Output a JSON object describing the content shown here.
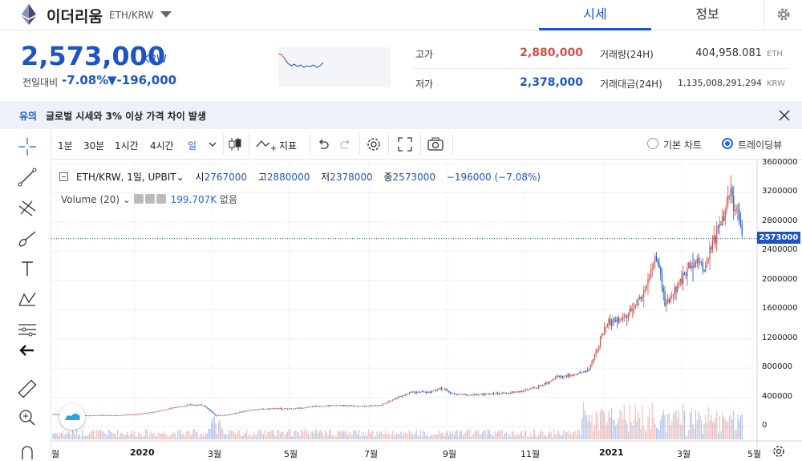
{
  "header": {
    "coin_name": "이더리움",
    "pair": "ETH/KRW",
    "tabs": [
      {
        "label": "시세"
      },
      {
        "label": "정보"
      }
    ]
  },
  "price": {
    "current": "2,573,000",
    "unit": "KRW",
    "change_label": "전일대비",
    "change_rate": "-7.08%",
    "change_amount": "▼-196,000"
  },
  "stats": {
    "high_label": "고가",
    "high_value": "2,880,000",
    "low_label": "저가",
    "low_value": "2,378,000",
    "volume_label": "거래량(24H)",
    "volume_value": "404,958.081",
    "volume_unit": "ETH",
    "amount_label": "거래대금(24H)",
    "amount_value": "1,135,008,291,294",
    "amount_unit": "KRW"
  },
  "notice": {
    "tag": "유의",
    "text": "글로벌 시세와 3% 이상 가격 차이 발생"
  },
  "toolbar": {
    "timeframes": [
      "1분",
      "30분",
      "1시간",
      "4시간",
      "일"
    ],
    "indicators_label": "지표",
    "basic_chart_label": "기본 차트",
    "tradingview_label": "트레이딩뷰"
  },
  "colors": {
    "up": "#d24f45",
    "down": "#1d55c7",
    "accent": "#1d55c7",
    "tv_blue": "#2962ff"
  },
  "chart_data": {
    "type": "candlestick",
    "legend": {
      "symbol": "ETH/KRW, 1일, UPBIT",
      "open_label": "시",
      "open": "2767000",
      "high_label": "고",
      "high": "2880000",
      "low_label": "저",
      "low": "2378000",
      "close_label": "종",
      "close": "2573000",
      "change": "−196000 (−7.08%)"
    },
    "volume_legend": {
      "label": "Volume (20)",
      "value": "199.707K",
      "status": "없음"
    },
    "last_price_label": "2573000",
    "y_ticks": [
      "3600000",
      "3200000",
      "2800000",
      "2400000",
      "2000000",
      "1600000",
      "1200000",
      "800000",
      "400000",
      "0"
    ],
    "y_tick_values": [
      3600000,
      3200000,
      2800000,
      2400000,
      2000000,
      1600000,
      1200000,
      800000,
      400000,
      0
    ],
    "x_ticks": [
      {
        "label": "월",
        "bold": false
      },
      {
        "label": "2020",
        "bold": true
      },
      {
        "label": "3월",
        "bold": false
      },
      {
        "label": "5월",
        "bold": false
      },
      {
        "label": "7월",
        "bold": false
      },
      {
        "label": "9월",
        "bold": false
      },
      {
        "label": "11월",
        "bold": false
      },
      {
        "label": "2021",
        "bold": true
      },
      {
        "label": "3월",
        "bold": false
      },
      {
        "label": "5월",
        "bold": false
      }
    ],
    "ylim": [
      0,
      3600000
    ],
    "price_path": [
      [
        0,
        170000
      ],
      [
        20,
        160000
      ],
      [
        40,
        150000
      ],
      [
        60,
        155000
      ],
      [
        80,
        150000
      ],
      [
        100,
        165000
      ],
      [
        120,
        185000
      ],
      [
        150,
        250000
      ],
      [
        170,
        300000
      ],
      [
        190,
        290000
      ],
      [
        205,
        150000
      ],
      [
        220,
        160000
      ],
      [
        250,
        230000
      ],
      [
        280,
        250000
      ],
      [
        300,
        240000
      ],
      [
        330,
        280000
      ],
      [
        360,
        290000
      ],
      [
        390,
        280000
      ],
      [
        410,
        290000
      ],
      [
        430,
        390000
      ],
      [
        450,
        480000
      ],
      [
        470,
        470000
      ],
      [
        485,
        530000
      ],
      [
        500,
        450000
      ],
      [
        520,
        430000
      ],
      [
        550,
        450000
      ],
      [
        570,
        460000
      ],
      [
        590,
        490000
      ],
      [
        610,
        560000
      ],
      [
        630,
        680000
      ],
      [
        650,
        700000
      ],
      [
        670,
        780000
      ],
      [
        685,
        1200000
      ],
      [
        695,
        1420000
      ],
      [
        710,
        1450000
      ],
      [
        725,
        1600000
      ],
      [
        740,
        1850000
      ],
      [
        755,
        2350000
      ],
      [
        765,
        1650000
      ],
      [
        775,
        1800000
      ],
      [
        790,
        2100000
      ],
      [
        805,
        2300000
      ],
      [
        815,
        2150000
      ],
      [
        825,
        2500000
      ],
      [
        835,
        2800000
      ],
      [
        845,
        3230000
      ],
      [
        855,
        2900000
      ],
      [
        862,
        2573000
      ]
    ]
  }
}
